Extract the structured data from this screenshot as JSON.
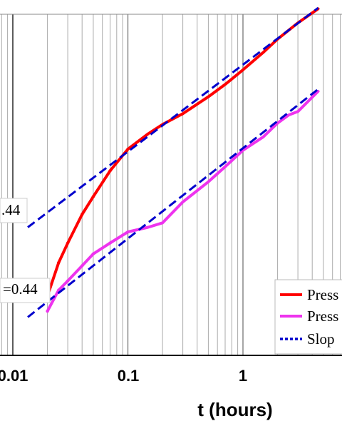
{
  "chart_data": {
    "type": "line",
    "x_scale": "log",
    "y_scale": "log",
    "grid": "vertical",
    "xlabel": "t (hours)",
    "xlim": [
      0.01,
      4.5
    ],
    "x_ticks": [
      {
        "value": 0.01,
        "label": "0.01"
      },
      {
        "value": 0.1,
        "label": "0.1"
      },
      {
        "value": 1,
        "label": "1"
      }
    ],
    "series": [
      {
        "name": "Press",
        "color": "#ff0000",
        "style": "solid",
        "x": [
          0.02,
          0.025,
          0.03,
          0.04,
          0.05,
          0.07,
          0.1,
          0.15,
          0.2,
          0.3,
          0.5,
          0.7,
          1,
          1.5,
          2,
          3,
          4.5
        ],
        "y": [
          5.8,
          7.7,
          9.1,
          11.6,
          13.5,
          16.8,
          20.2,
          23.0,
          24.9,
          27.3,
          31.5,
          35.0,
          39.6,
          45.9,
          51.4,
          59.0,
          66.5
        ]
      },
      {
        "name": "Press",
        "color": "#ee33ee",
        "style": "solid",
        "x": [
          0.02,
          0.025,
          0.03,
          0.04,
          0.05,
          0.07,
          0.1,
          0.15,
          0.2,
          0.3,
          0.5,
          0.7,
          1,
          1.5,
          2,
          2.5,
          3,
          4.5
        ],
        "y": [
          5.1,
          6.1,
          6.6,
          7.5,
          8.3,
          9.1,
          10.0,
          10.4,
          10.8,
          12.9,
          15.3,
          17.4,
          20.0,
          22.4,
          25.2,
          27.0,
          27.8,
          33.0
        ]
      },
      {
        "name": "Slop",
        "color": "#0000cc",
        "style": "dashed",
        "x": [
          0.0135,
          4.5
        ],
        "y": [
          10.4,
          67.0
        ]
      },
      {
        "name": "Slop",
        "color": "#0000cc",
        "style": "dashed",
        "x": [
          0.0135,
          4.5
        ],
        "y": [
          4.85,
          33.6
        ]
      }
    ],
    "annotations": [
      {
        "text": ".44"
      },
      {
        "text": "=0.44"
      }
    ],
    "legend": {
      "position": "bottom-right",
      "entries": [
        {
          "label": "Press",
          "color": "#ff0000",
          "style": "solid"
        },
        {
          "label": "Press",
          "color": "#ee33ee",
          "style": "solid"
        },
        {
          "label": "Slop",
          "color": "#0000cc",
          "style": "dotted"
        }
      ]
    }
  }
}
